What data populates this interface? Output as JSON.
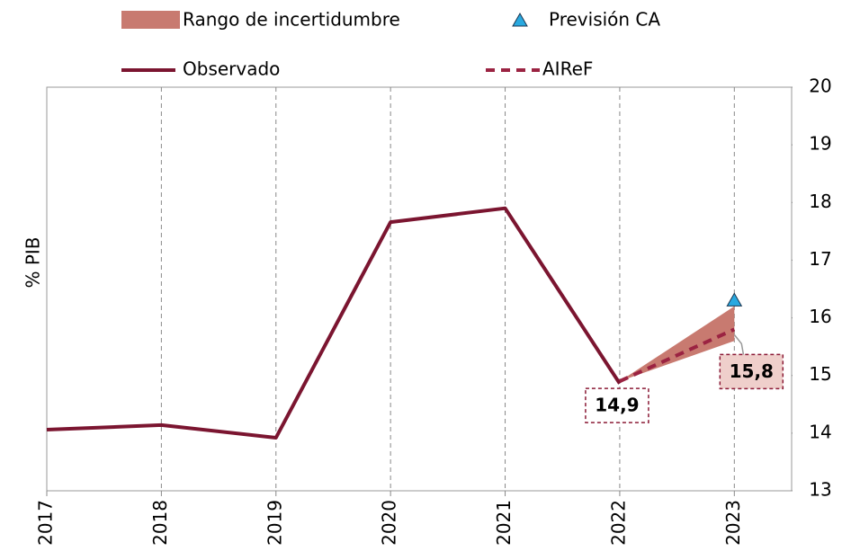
{
  "chart_data": {
    "type": "line",
    "y_label": "% PIB",
    "x": [
      2017,
      2018,
      2019,
      2020,
      2021,
      2022,
      2023
    ],
    "xlim": [
      2017,
      2023.5
    ],
    "ylim": [
      13,
      20
    ],
    "yticks": [
      13,
      14,
      15,
      16,
      17,
      18,
      19,
      20
    ],
    "grid": "x",
    "y_axis_side": "right",
    "band": {
      "name": "Rango de incertidumbre",
      "color": "#c87a70",
      "lower": [
        null,
        null,
        null,
        null,
        null,
        14.9,
        15.6
      ],
      "upper": [
        null,
        null,
        null,
        null,
        null,
        14.9,
        16.2
      ]
    },
    "series": [
      {
        "name": "Observado",
        "color": "#7b1530",
        "style": "solid",
        "values": [
          14.06,
          14.14,
          13.92,
          17.66,
          17.9,
          14.86,
          null
        ]
      },
      {
        "name": "AIReF",
        "color": "#9b2342",
        "style": "dashed",
        "values": [
          null,
          null,
          null,
          null,
          null,
          14.9,
          15.8
        ],
        "value_labels": [
          null,
          null,
          null,
          null,
          null,
          "14,9",
          "15,8"
        ]
      },
      {
        "name": "Previsión CA",
        "color": "#29a9e0",
        "style": "marker",
        "values": [
          null,
          null,
          null,
          null,
          null,
          null,
          16.3
        ]
      }
    ]
  }
}
